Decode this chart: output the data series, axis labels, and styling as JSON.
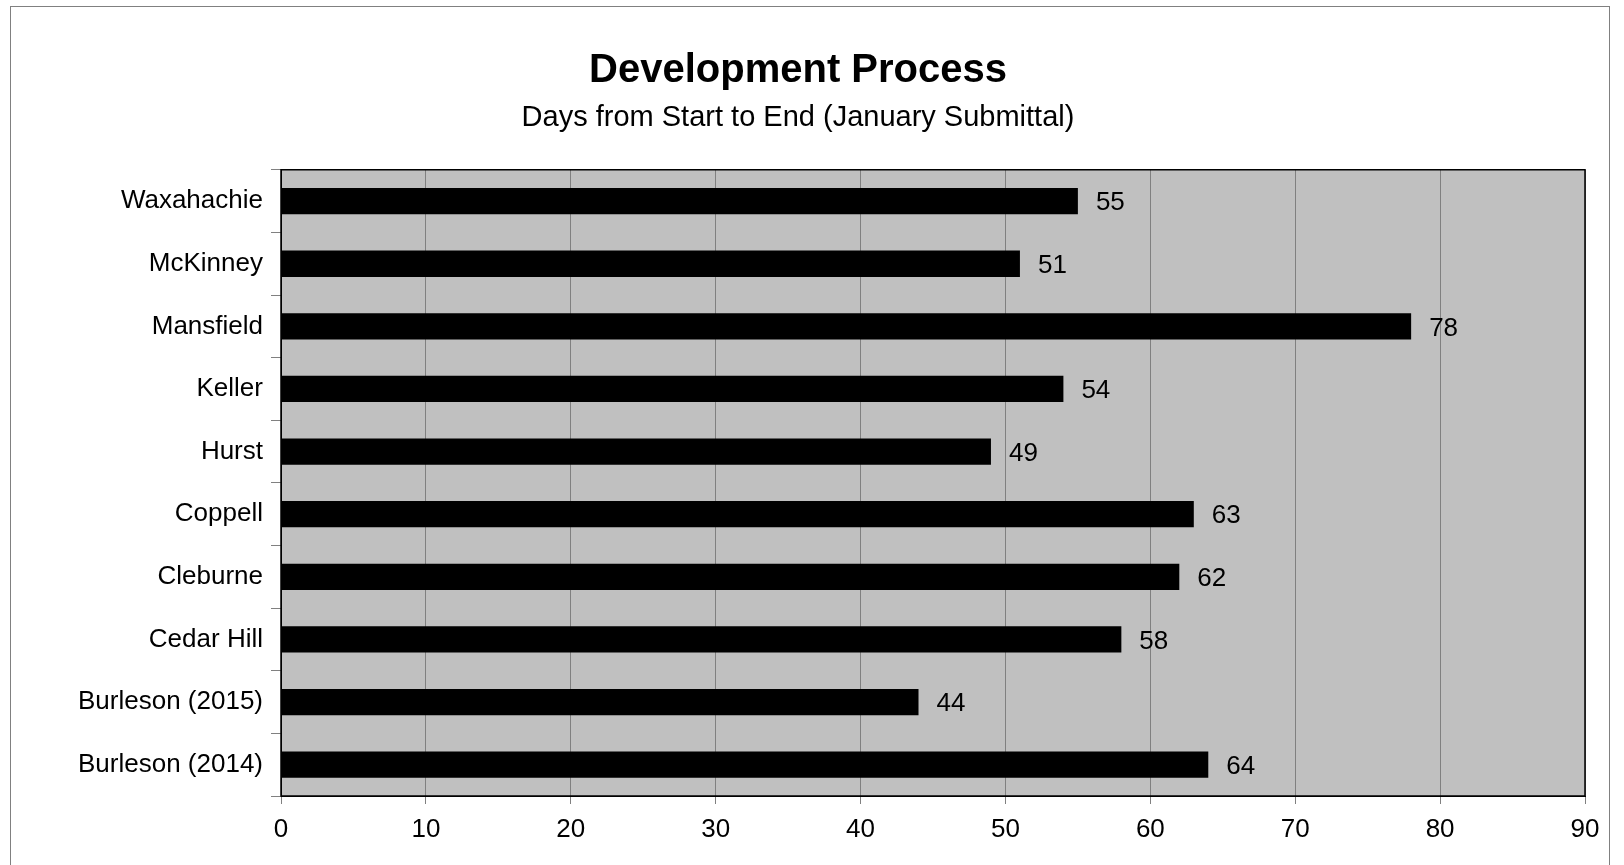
{
  "chart_data": {
    "type": "bar",
    "orientation": "horizontal",
    "title": "Development Process",
    "subtitle": "Days from Start to End (January Submittal)",
    "categories": [
      "Waxahachie",
      "McKinney",
      "Mansfield",
      "Keller",
      "Hurst",
      "Coppell",
      "Cleburne",
      "Cedar Hill",
      "Burleson (2015)",
      "Burleson (2014)"
    ],
    "values": [
      55,
      51,
      78,
      54,
      49,
      63,
      62,
      58,
      44,
      64
    ],
    "color": "#000000",
    "xlim": [
      0,
      90
    ],
    "xticks": [
      0,
      10,
      20,
      30,
      40,
      50,
      60,
      70,
      80,
      90
    ],
    "grid": "x",
    "data_labels": true,
    "legend": false
  }
}
